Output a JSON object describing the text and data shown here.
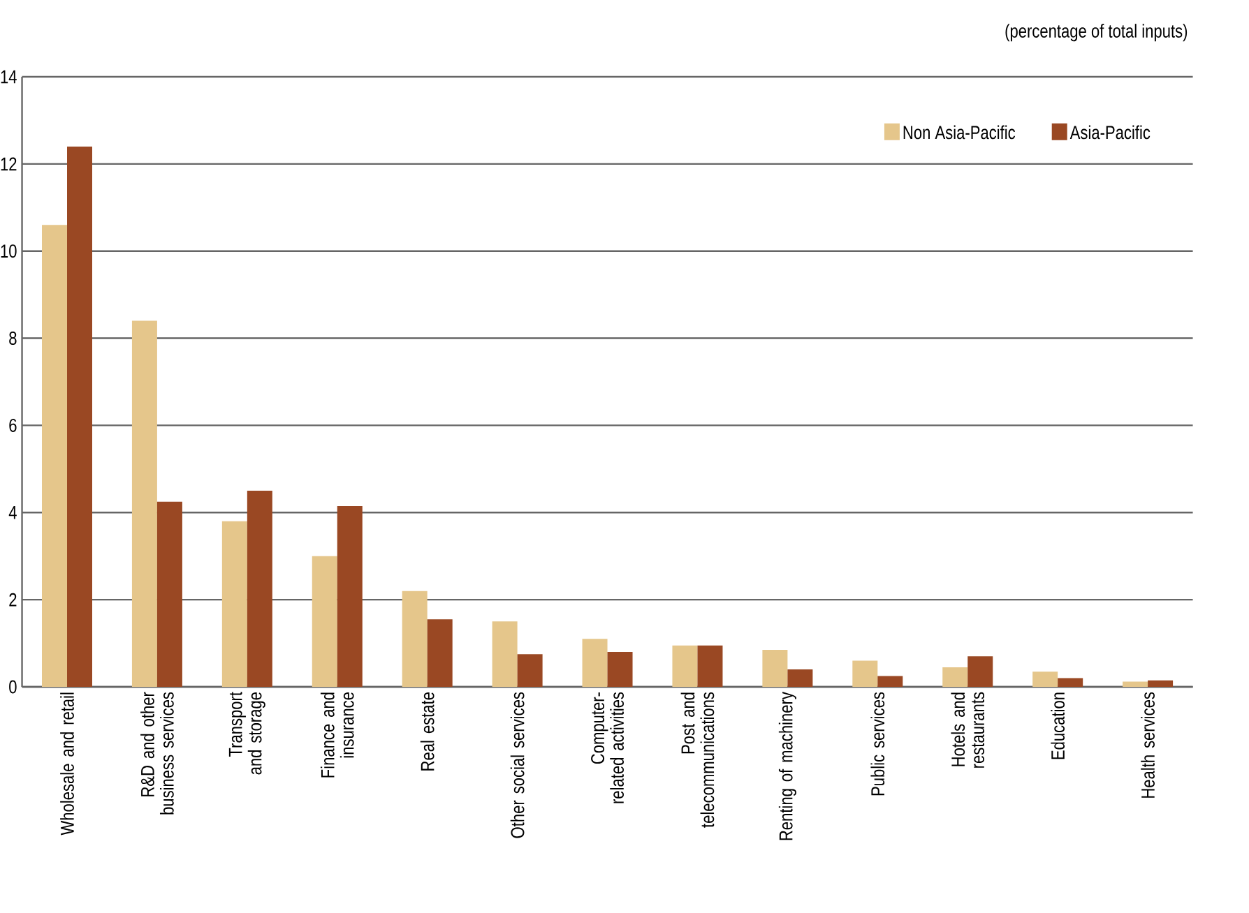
{
  "chart_data": {
    "type": "bar",
    "ylabel": "(percentage of total inputs)",
    "categories": [
      "Wholesale and retail",
      "R&D and other business services",
      "Transport and storage",
      "Finance and insurance",
      "Real estate",
      "Other social services",
      "Computer-related activities",
      "Post and telecommunications",
      "Renting of machinery",
      "Public services",
      "Hotels and restaurants",
      "Education",
      "Health services"
    ],
    "series": [
      {
        "name": "Non Asia-Pacific",
        "color": "#e5c68b",
        "values": [
          10.6,
          8.4,
          3.8,
          3.0,
          2.2,
          1.5,
          1.1,
          0.95,
          0.85,
          0.6,
          0.45,
          0.35,
          0.12
        ]
      },
      {
        "name": "Asia-Pacific",
        "color": "#9a4823",
        "values": [
          12.4,
          4.25,
          4.5,
          4.15,
          1.55,
          0.75,
          0.8,
          0.95,
          0.4,
          0.25,
          0.7,
          0.2,
          0.15
        ]
      }
    ],
    "ylim": [
      0,
      14
    ],
    "yticks": [
      0,
      2,
      4,
      6,
      8,
      10,
      12,
      14
    ],
    "grid": "y",
    "legend": "top right"
  }
}
